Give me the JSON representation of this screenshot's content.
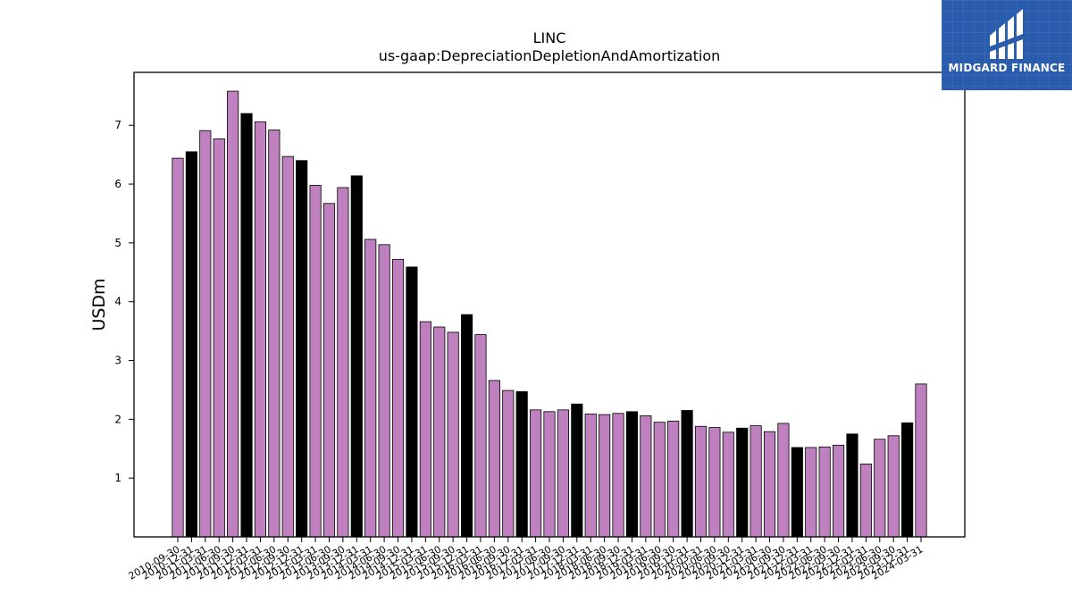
{
  "chart_data": {
    "type": "bar",
    "title": "LINC",
    "subtitle": "us-gaap:DepreciationDepletionAndAmortization",
    "ylabel": "USDm",
    "xlabel": "",
    "ylim": [
      0,
      7.9
    ],
    "yticks": [
      1,
      2,
      3,
      4,
      5,
      6,
      7
    ],
    "grid": false,
    "colors": {
      "quarter": "#bf80bf",
      "annual": "#000000",
      "edge": "#000000"
    },
    "categories": [
      "2010-09-30",
      "2010-12-31",
      "2011-03-31",
      "2011-06-30",
      "2011-09-30",
      "2011-12-31",
      "2012-03-31",
      "2012-06-30",
      "2012-09-30",
      "2012-12-31",
      "2013-03-31",
      "2013-06-30",
      "2013-09-30",
      "2013-12-31",
      "2014-03-31",
      "2014-06-30",
      "2014-09-30",
      "2014-12-31",
      "2015-03-31",
      "2015-06-30",
      "2015-09-30",
      "2015-12-31",
      "2016-03-31",
      "2016-06-30",
      "2016-09-30",
      "2016-12-31",
      "2017-03-31",
      "2017-06-30",
      "2017-09-30",
      "2017-12-31",
      "2018-03-31",
      "2018-06-30",
      "2018-09-30",
      "2018-12-31",
      "2019-03-31",
      "2019-06-30",
      "2019-09-30",
      "2019-12-31",
      "2020-03-31",
      "2020-06-30",
      "2020-09-30",
      "2020-12-31",
      "2021-03-31",
      "2021-06-30",
      "2021-09-30",
      "2021-12-31",
      "2022-03-31",
      "2022-06-30",
      "2022-09-30",
      "2022-12-31",
      "2023-03-31",
      "2023-06-30",
      "2023-09-30",
      "2023-12-31",
      "2024-03-31"
    ],
    "values": [
      6.44,
      6.55,
      6.91,
      6.77,
      7.58,
      7.2,
      7.06,
      6.92,
      6.47,
      6.4,
      5.98,
      5.67,
      5.94,
      6.14,
      5.06,
      4.97,
      4.72,
      4.59,
      3.66,
      3.57,
      3.48,
      3.78,
      3.44,
      2.66,
      2.49,
      2.47,
      2.16,
      2.13,
      2.16,
      2.26,
      2.09,
      2.08,
      2.1,
      2.13,
      2.06,
      1.95,
      1.97,
      2.15,
      1.88,
      1.86,
      1.78,
      1.85,
      1.89,
      1.79,
      1.93,
      1.52,
      1.52,
      1.53,
      1.56,
      1.75,
      1.24,
      1.66,
      1.72,
      1.94,
      2.6
    ],
    "annual_flags": [
      false,
      true,
      false,
      false,
      false,
      true,
      false,
      false,
      false,
      true,
      false,
      false,
      false,
      true,
      false,
      false,
      false,
      true,
      false,
      false,
      false,
      true,
      false,
      false,
      false,
      true,
      false,
      false,
      false,
      true,
      false,
      false,
      false,
      true,
      false,
      false,
      false,
      true,
      false,
      false,
      false,
      true,
      false,
      false,
      false,
      true,
      false,
      false,
      false,
      true,
      false,
      false,
      false,
      true,
      false
    ]
  },
  "logo": {
    "text": "MIDGARD FINANCE",
    "icon": "midgard-logo-icon"
  }
}
